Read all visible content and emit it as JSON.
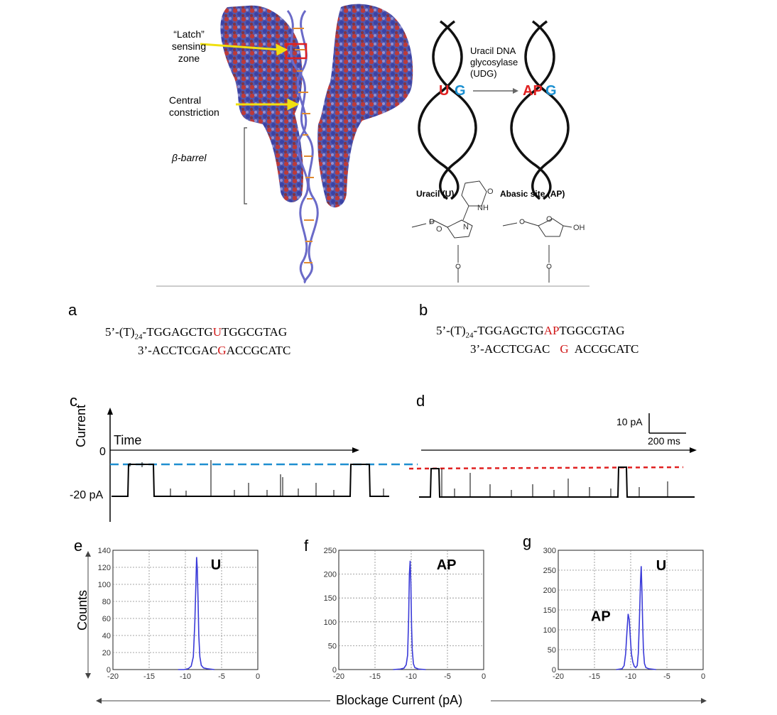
{
  "top_figure": {
    "latch_label": [
      "“Latch”",
      "sensing",
      "zone"
    ],
    "constriction_label": [
      "Central",
      "constriction"
    ],
    "barrel_label": "β-barrel",
    "udg_label": [
      "Uracil DNA",
      "glycosylase",
      "(UDG)"
    ],
    "left_pair": {
      "base1": "U",
      "base2": "G"
    },
    "right_pair": {
      "base1": "AP",
      "base2": "G"
    },
    "uracil_title": "Uracil (U)",
    "abasic_title": "Abasic site (AP)",
    "chem_atoms": [
      "NH",
      "N",
      "O",
      "O",
      "O",
      "P",
      "OH"
    ]
  },
  "panel_a": {
    "letter": "a",
    "top_prefix": "5’-(T)",
    "top_sub": "24",
    "top_pre": "-TGGAGCTG",
    "top_mark": "U",
    "top_post": "TGGCGTAG",
    "bottom_pre": "3’-ACCTCGAC",
    "bottom_mark": "G",
    "bottom_post": "ACCGCATC"
  },
  "panel_b": {
    "letter": "b",
    "top_prefix": "5’-(T)",
    "top_sub": "24",
    "top_pre": "-TGGAGCTG",
    "top_mark": "AP",
    "top_post": "TGGCGTAG",
    "bottom_pre": "3’-ACCTCGAC",
    "bottom_mark": "G",
    "bottom_post": "ACCGCATC"
  },
  "traces": {
    "letter_c": "c",
    "letter_d": "d",
    "y_axis_label": "Current",
    "x_axis_label": "Time",
    "zero_label": "0",
    "minus20_label": "-20 pA",
    "scale_current": "10 pA",
    "scale_time": "200 ms",
    "colors": {
      "u_level": "#1f8fd0",
      "ap_level": "#e02020"
    }
  },
  "hist_common": {
    "y_label": "Counts",
    "x_label": "Blockage Current (pA)"
  },
  "chart_data": [
    {
      "type": "line",
      "panel": "e",
      "peak_label": "U",
      "xlim": [
        -20,
        0
      ],
      "ylim": [
        0,
        140
      ],
      "x_ticks": [
        -20,
        -15,
        -10,
        -5,
        0
      ],
      "y_ticks": [
        0,
        20,
        40,
        60,
        80,
        100,
        120,
        140
      ],
      "grid": true,
      "series": [
        {
          "color": "#3a3ad8",
          "x": [
            -11,
            -10.2,
            -9.6,
            -9.2,
            -8.9,
            -8.7,
            -8.55,
            -8.45,
            -8.35,
            -8.25,
            -8.15,
            -8.0,
            -7.8,
            -7.5,
            -7.0,
            -6.0
          ],
          "y": [
            0,
            0,
            1,
            4,
            15,
            55,
            100,
            132,
            118,
            80,
            40,
            15,
            5,
            2,
            1,
            0
          ]
        }
      ]
    },
    {
      "type": "line",
      "panel": "f",
      "peak_label": "AP",
      "xlim": [
        -20,
        0
      ],
      "ylim": [
        0,
        250
      ],
      "x_ticks": [
        -20,
        -15,
        -10,
        -5,
        0
      ],
      "y_ticks": [
        0,
        50,
        100,
        150,
        200,
        250
      ],
      "grid": true,
      "series": [
        {
          "color": "#3a3ad8",
          "x": [
            -12.5,
            -11.5,
            -11.0,
            -10.7,
            -10.5,
            -10.35,
            -10.25,
            -10.15,
            -10.05,
            -9.95,
            -9.85,
            -9.7,
            -9.5,
            -9.0,
            -8.0
          ],
          "y": [
            0,
            1,
            3,
            10,
            30,
            110,
            200,
            228,
            180,
            90,
            40,
            12,
            4,
            1,
            0
          ]
        }
      ]
    },
    {
      "type": "line",
      "panel": "g",
      "peak_labels": [
        "AP",
        "U"
      ],
      "xlim": [
        -20,
        0
      ],
      "ylim": [
        0,
        300
      ],
      "x_ticks": [
        -20,
        -15,
        -10,
        -5,
        0
      ],
      "y_ticks": [
        0,
        50,
        100,
        150,
        200,
        250,
        300
      ],
      "grid": true,
      "series": [
        {
          "color": "#3a3ad8",
          "x": [
            -12,
            -11.2,
            -10.9,
            -10.7,
            -10.5,
            -10.35,
            -10.2,
            -10.05,
            -9.9,
            -9.7,
            -9.5,
            -9.3,
            -9.1,
            -8.95,
            -8.8,
            -8.65,
            -8.55,
            -8.45,
            -8.35,
            -8.25,
            -8.1,
            -7.9,
            -7.5,
            -6.5
          ],
          "y": [
            0,
            2,
            10,
            40,
            100,
            140,
            125,
            80,
            40,
            18,
            8,
            5,
            10,
            40,
            120,
            220,
            260,
            200,
            120,
            50,
            15,
            5,
            2,
            0
          ]
        }
      ]
    }
  ]
}
